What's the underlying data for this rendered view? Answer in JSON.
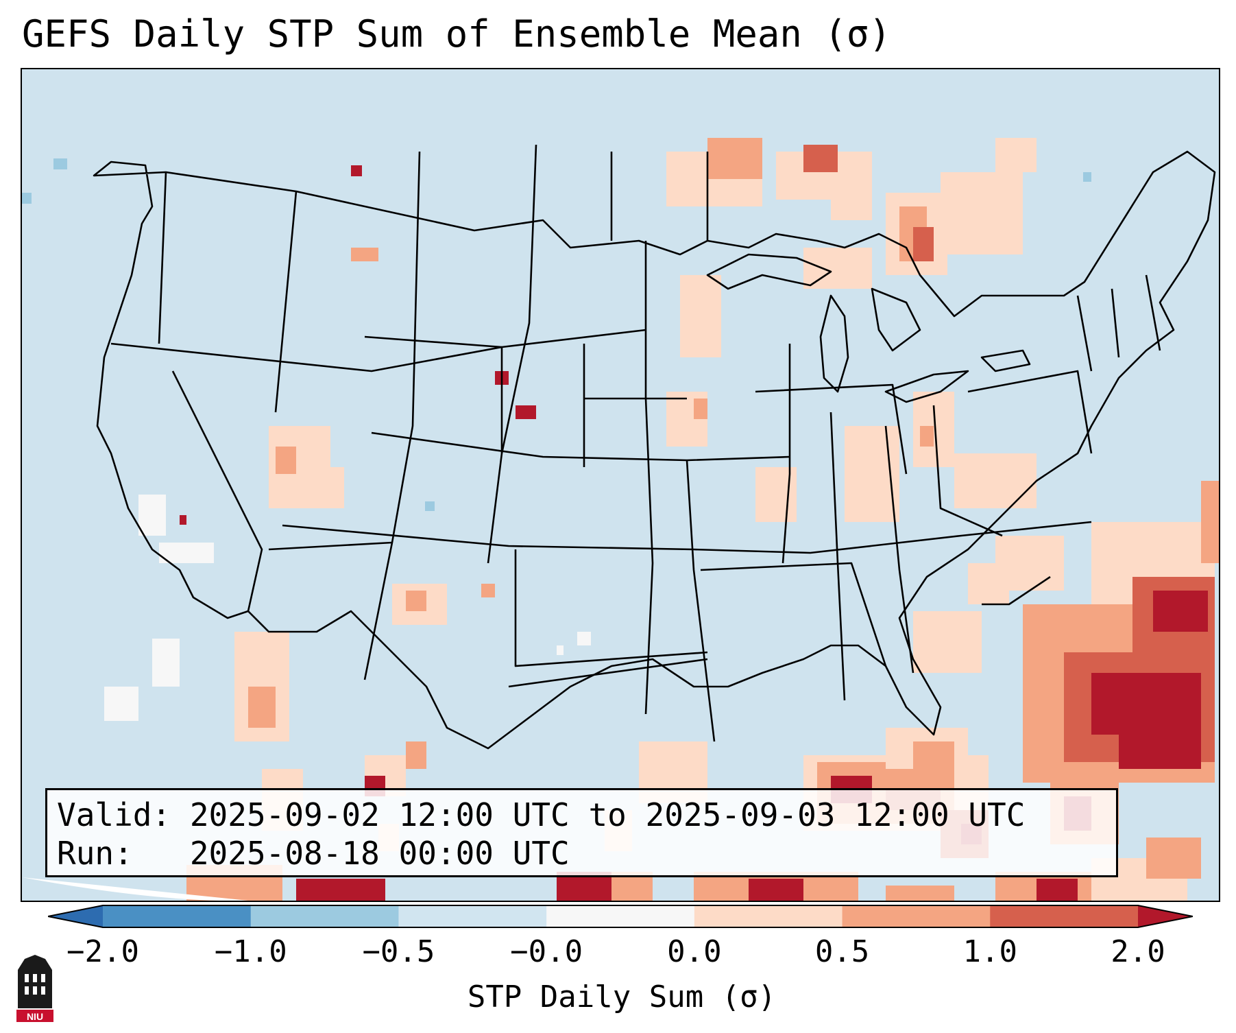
{
  "title": "GEFS Daily STP Sum of Ensemble Mean (σ)",
  "info": {
    "valid_line": "Valid: 2025-09-02 12:00 UTC to 2025-09-03 12:00 UTC",
    "run_line": "Run:   2025-08-18 00:00 UTC"
  },
  "colorbar": {
    "label": "STP Daily Sum (σ)",
    "ticks": [
      "−2.0",
      "−1.0",
      "−0.5",
      "−0.0",
      "0.0",
      "0.5",
      "1.0",
      "2.0"
    ],
    "colors": [
      "#2d6cb0",
      "#4a90c4",
      "#9ccae0",
      "#d1e5f0",
      "#f7f7f7",
      "#fddbc7",
      "#f4a582",
      "#d6604d",
      "#b2182b"
    ],
    "extend": "both"
  },
  "map": {
    "projection": "Lambert conformal, CONUS",
    "background_color": "#d1e5f0",
    "highlight_color": "#b2182b"
  },
  "logo": {
    "text": "NIU"
  }
}
